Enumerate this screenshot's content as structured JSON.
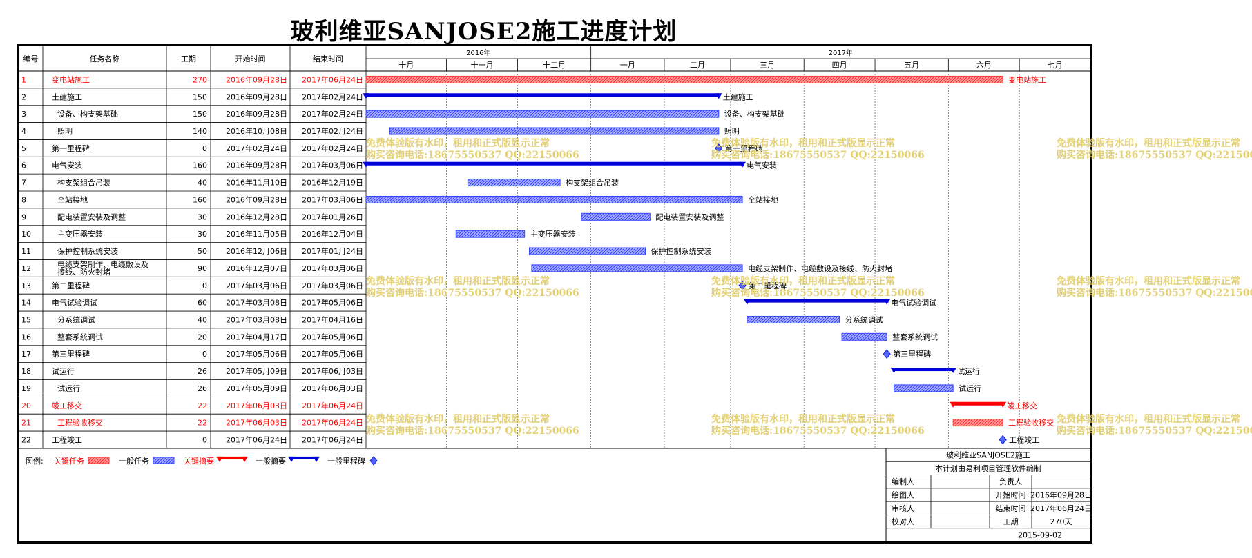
{
  "title": "玻利维亚SANJOSE2施工进度计划",
  "colors": {
    "critical": "#ff3b3b",
    "critical_text": "#ff0000",
    "normal": "#3344ff",
    "summary": "#0000dd",
    "grid": "#000000",
    "watermark": "#e0cc66"
  },
  "table": {
    "headers": {
      "id": "编号",
      "name": "任务名称",
      "duration": "工期",
      "start": "开始时间",
      "end": "结束时间"
    },
    "rows": [
      {
        "id": "1",
        "name": "变电站施工",
        "duration": "270",
        "start": "2016年09月28日",
        "end": "2017年06月24日",
        "kind": "critical-task",
        "indent": 0
      },
      {
        "id": "2",
        "name": "土建施工",
        "duration": "150",
        "start": "2016年09月28日",
        "end": "2017年02月24日",
        "kind": "summary",
        "indent": 0
      },
      {
        "id": "3",
        "name": "设备、构支架基础",
        "duration": "150",
        "start": "2016年09月28日",
        "end": "2017年02月24日",
        "kind": "task",
        "indent": 1
      },
      {
        "id": "4",
        "name": "照明",
        "duration": "140",
        "start": "2016年10月08日",
        "end": "2017年02月24日",
        "kind": "task",
        "indent": 1
      },
      {
        "id": "5",
        "name": "第一里程碑",
        "duration": "0",
        "start": "2017年02月24日",
        "end": "2017年02月24日",
        "kind": "milestone",
        "indent": 0
      },
      {
        "id": "6",
        "name": "电气安装",
        "duration": "160",
        "start": "2016年09月28日",
        "end": "2017年03月06日",
        "kind": "summary",
        "indent": 0
      },
      {
        "id": "7",
        "name": "构支架组合吊装",
        "duration": "40",
        "start": "2016年11月10日",
        "end": "2016年12月19日",
        "kind": "task",
        "indent": 1
      },
      {
        "id": "8",
        "name": "全站接地",
        "duration": "160",
        "start": "2016年09月28日",
        "end": "2017年03月06日",
        "kind": "task",
        "indent": 1
      },
      {
        "id": "9",
        "name": "配电装置安装及调整",
        "duration": "30",
        "start": "2016年12月28日",
        "end": "2017年01月26日",
        "kind": "task",
        "indent": 1
      },
      {
        "id": "10",
        "name": "主变压器安装",
        "duration": "30",
        "start": "2016年11月05日",
        "end": "2016年12月04日",
        "kind": "task",
        "indent": 1
      },
      {
        "id": "11",
        "name": "保护控制系统安装",
        "duration": "50",
        "start": "2016年12月06日",
        "end": "2017年01月24日",
        "kind": "task",
        "indent": 1
      },
      {
        "id": "12",
        "name": "电缆支架制作、电缆敷设及接线、防火封堵",
        "name_lines": [
          "电缆支架制作、电缆敷设及",
          "接线、防火封堵"
        ],
        "duration": "90",
        "start": "2016年12月07日",
        "end": "2017年03月06日",
        "kind": "task",
        "indent": 1
      },
      {
        "id": "13",
        "name": "第二里程碑",
        "duration": "0",
        "start": "2017年03月06日",
        "end": "2017年03月06日",
        "kind": "milestone",
        "indent": 0
      },
      {
        "id": "14",
        "name": "电气试验调试",
        "duration": "60",
        "start": "2017年03月08日",
        "end": "2017年05月06日",
        "kind": "summary",
        "indent": 0
      },
      {
        "id": "15",
        "name": "分系统调试",
        "duration": "40",
        "start": "2017年03月08日",
        "end": "2017年04月16日",
        "kind": "task",
        "indent": 1
      },
      {
        "id": "16",
        "name": "整套系统调试",
        "duration": "20",
        "start": "2017年04月17日",
        "end": "2017年05月06日",
        "kind": "task",
        "indent": 1
      },
      {
        "id": "17",
        "name": "第三里程碑",
        "duration": "0",
        "start": "2017年05月06日",
        "end": "2017年05月06日",
        "kind": "milestone",
        "indent": 0
      },
      {
        "id": "18",
        "name": "试运行",
        "duration": "26",
        "start": "2017年05月09日",
        "end": "2017年06月03日",
        "kind": "summary",
        "indent": 0
      },
      {
        "id": "19",
        "name": "试运行",
        "duration": "26",
        "start": "2017年05月09日",
        "end": "2017年06月03日",
        "kind": "task",
        "indent": 1
      },
      {
        "id": "20",
        "name": "竣工移交",
        "duration": "22",
        "start": "2017年06月03日",
        "end": "2017年06月24日",
        "kind": "critical-summary",
        "indent": 0
      },
      {
        "id": "21",
        "name": "工程验收移交",
        "duration": "22",
        "start": "2017年06月03日",
        "end": "2017年06月24日",
        "kind": "critical-task",
        "indent": 1
      },
      {
        "id": "22",
        "name": "工程竣工",
        "duration": "0",
        "start": "2017年06月24日",
        "end": "2017年06月24日",
        "kind": "milestone",
        "indent": 0
      }
    ]
  },
  "chart_data": {
    "type": "gantt",
    "title": "玻利维亚SANJOSE2施工进度计划",
    "timeline": {
      "start": "2016-09-28",
      "end": "2017-07-31",
      "years": [
        {
          "label": "2016年",
          "from": "2016-09-28",
          "to": "2017-01-01"
        },
        {
          "label": "2017年",
          "from": "2017-01-01",
          "to": "2017-07-31"
        }
      ],
      "months": [
        {
          "label": "十月",
          "from": "2016-09-28",
          "to": "2016-11-01"
        },
        {
          "label": "十一月",
          "from": "2016-11-01",
          "to": "2016-12-01"
        },
        {
          "label": "十二月",
          "from": "2016-12-01",
          "to": "2017-01-01"
        },
        {
          "label": "一月",
          "from": "2017-01-01",
          "to": "2017-02-01"
        },
        {
          "label": "二月",
          "from": "2017-02-01",
          "to": "2017-03-01"
        },
        {
          "label": "三月",
          "from": "2017-03-01",
          "to": "2017-04-01"
        },
        {
          "label": "四月",
          "from": "2017-04-01",
          "to": "2017-05-01"
        },
        {
          "label": "五月",
          "from": "2017-05-01",
          "to": "2017-06-01"
        },
        {
          "label": "六月",
          "from": "2017-06-01",
          "to": "2017-07-01"
        },
        {
          "label": "七月",
          "from": "2017-07-01",
          "to": "2017-07-31"
        }
      ]
    },
    "tasks": [
      {
        "id": "1",
        "label": "变电站施工",
        "start": "2016-09-28",
        "end": "2017-06-24",
        "kind": "critical-task"
      },
      {
        "id": "2",
        "label": "土建施工",
        "start": "2016-09-28",
        "end": "2017-02-24",
        "kind": "summary"
      },
      {
        "id": "3",
        "label": "设备、构支架基础",
        "start": "2016-09-28",
        "end": "2017-02-24",
        "kind": "task"
      },
      {
        "id": "4",
        "label": "照明",
        "start": "2016-10-08",
        "end": "2017-02-24",
        "kind": "task"
      },
      {
        "id": "5",
        "label": "第一里程碑",
        "start": "2017-02-24",
        "end": "2017-02-24",
        "kind": "milestone"
      },
      {
        "id": "6",
        "label": "电气安装",
        "start": "2016-09-28",
        "end": "2017-03-06",
        "kind": "summary"
      },
      {
        "id": "7",
        "label": "构支架组合吊装",
        "start": "2016-11-10",
        "end": "2016-12-19",
        "kind": "task"
      },
      {
        "id": "8",
        "label": "全站接地",
        "start": "2016-09-28",
        "end": "2017-03-06",
        "kind": "task"
      },
      {
        "id": "9",
        "label": "配电装置安装及调整",
        "start": "2016-12-28",
        "end": "2017-01-26",
        "kind": "task"
      },
      {
        "id": "10",
        "label": "主变压器安装",
        "start": "2016-11-05",
        "end": "2016-12-04",
        "kind": "task"
      },
      {
        "id": "11",
        "label": "保护控制系统安装",
        "start": "2016-12-06",
        "end": "2017-01-24",
        "kind": "task"
      },
      {
        "id": "12",
        "label": "电缆支架制作、电缆敷设及接线、防火封堵",
        "start": "2016-12-07",
        "end": "2017-03-06",
        "kind": "task"
      },
      {
        "id": "13",
        "label": "第二里程碑",
        "start": "2017-03-06",
        "end": "2017-03-06",
        "kind": "milestone"
      },
      {
        "id": "14",
        "label": "电气试验调试",
        "start": "2017-03-08",
        "end": "2017-05-06",
        "kind": "summary"
      },
      {
        "id": "15",
        "label": "分系统调试",
        "start": "2017-03-08",
        "end": "2017-04-16",
        "kind": "task"
      },
      {
        "id": "16",
        "label": "整套系统调试",
        "start": "2017-04-17",
        "end": "2017-05-06",
        "kind": "task"
      },
      {
        "id": "17",
        "label": "第三里程碑",
        "start": "2017-05-06",
        "end": "2017-05-06",
        "kind": "milestone"
      },
      {
        "id": "18",
        "label": "试运行",
        "start": "2017-05-09",
        "end": "2017-06-03",
        "kind": "summary"
      },
      {
        "id": "19",
        "label": "试运行",
        "start": "2017-05-09",
        "end": "2017-06-03",
        "kind": "task"
      },
      {
        "id": "20",
        "label": "竣工移交",
        "start": "2017-06-03",
        "end": "2017-06-24",
        "kind": "critical-summary"
      },
      {
        "id": "21",
        "label": "工程验收移交",
        "start": "2017-06-03",
        "end": "2017-06-24",
        "kind": "critical-task"
      },
      {
        "id": "22",
        "label": "工程竣工",
        "start": "2017-06-24",
        "end": "2017-06-24",
        "kind": "milestone"
      }
    ]
  },
  "legend": {
    "prefix": "图例:",
    "items": [
      {
        "label": "关键任务",
        "kind": "critical-task",
        "critical": true
      },
      {
        "label": "一般任务",
        "kind": "task",
        "critical": false
      },
      {
        "label": "关键摘要",
        "kind": "critical-summary",
        "critical": true
      },
      {
        "label": "一般摘要",
        "kind": "summary",
        "critical": false
      },
      {
        "label": "一般里程碑",
        "kind": "milestone",
        "critical": false
      }
    ]
  },
  "info_box": {
    "project": "玻利维亚SANJOSE2施工",
    "note": "本计划由易利项目管理软件编制",
    "compiler_label": "编制人",
    "compiler_value": "",
    "owner_label": "负责人",
    "owner_value": "",
    "drawer_label": "绘图人",
    "drawer_value": "",
    "start_label": "开始时间",
    "start_value": "2016年09月28日",
    "reviewer_label": "审核人",
    "reviewer_value": "",
    "end_label": "结束时间",
    "end_value": "2017年06月24日",
    "checker_label": "校对人",
    "checker_value": "",
    "duration_label": "工期",
    "duration_value": "270天",
    "date": "2015-09-02"
  },
  "watermark": {
    "line1": "免费体验版有水印，租用和正式版显示正常",
    "line2": "购买咨询电话:18675550537 QQ:22150066"
  }
}
